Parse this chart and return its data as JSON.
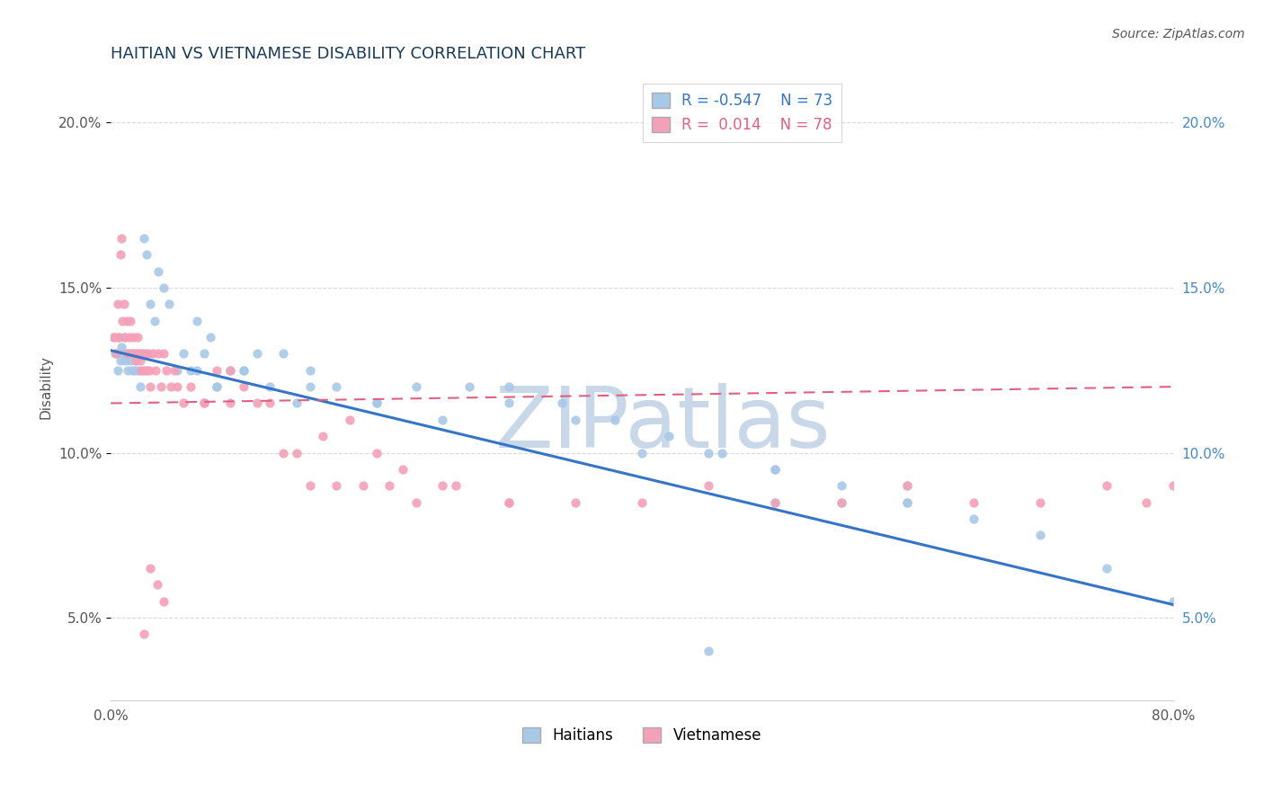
{
  "title": "HAITIAN VS VIETNAMESE DISABILITY CORRELATION CHART",
  "source": "Source: ZipAtlas.com",
  "ylabel": "Disability",
  "xlim": [
    0.0,
    0.8
  ],
  "ylim": [
    0.025,
    0.215
  ],
  "xtick_positions": [
    0.0,
    0.1,
    0.2,
    0.3,
    0.4,
    0.5,
    0.6,
    0.7,
    0.8
  ],
  "xticklabels": [
    "0.0%",
    "",
    "",
    "",
    "",
    "",
    "",
    "",
    "80.0%"
  ],
  "ytick_positions": [
    0.05,
    0.1,
    0.15,
    0.2
  ],
  "yticklabels": [
    "5.0%",
    "10.0%",
    "15.0%",
    "20.0%"
  ],
  "R_haitian": -0.547,
  "N_haitian": 73,
  "R_vietnamese": 0.014,
  "N_vietnamese": 78,
  "haitian_color": "#a8c8e8",
  "vietnamese_color": "#f4a0b8",
  "haitian_line_color": "#3575c8",
  "vietnamese_line_color": "#e06080",
  "watermark": "ZIPatlas",
  "watermark_color": "#c8d8e8",
  "title_color": "#1a3a5c",
  "grid_color": "#d8d8d8",
  "haitian_x": [
    0.003,
    0.005,
    0.006,
    0.007,
    0.008,
    0.009,
    0.01,
    0.011,
    0.012,
    0.013,
    0.014,
    0.015,
    0.016,
    0.017,
    0.018,
    0.019,
    0.02,
    0.021,
    0.022,
    0.023,
    0.025,
    0.027,
    0.03,
    0.033,
    0.036,
    0.04,
    0.044,
    0.05,
    0.055,
    0.06,
    0.065,
    0.07,
    0.075,
    0.08,
    0.09,
    0.1,
    0.11,
    0.12,
    0.13,
    0.14,
    0.15,
    0.17,
    0.2,
    0.23,
    0.27,
    0.3,
    0.34,
    0.38,
    0.42,
    0.46,
    0.5,
    0.55,
    0.6,
    0.065,
    0.08,
    0.1,
    0.15,
    0.2,
    0.25,
    0.3,
    0.35,
    0.4,
    0.45,
    0.5,
    0.55,
    0.6,
    0.65,
    0.7,
    0.75,
    0.8,
    0.6,
    0.5,
    0.45
  ],
  "haitian_y": [
    0.13,
    0.125,
    0.135,
    0.128,
    0.132,
    0.13,
    0.135,
    0.128,
    0.13,
    0.125,
    0.13,
    0.128,
    0.125,
    0.13,
    0.125,
    0.128,
    0.13,
    0.125,
    0.12,
    0.13,
    0.165,
    0.16,
    0.145,
    0.14,
    0.155,
    0.15,
    0.145,
    0.125,
    0.13,
    0.125,
    0.14,
    0.13,
    0.135,
    0.12,
    0.125,
    0.125,
    0.13,
    0.12,
    0.13,
    0.115,
    0.125,
    0.12,
    0.115,
    0.12,
    0.12,
    0.12,
    0.115,
    0.11,
    0.105,
    0.1,
    0.095,
    0.085,
    0.085,
    0.125,
    0.12,
    0.125,
    0.12,
    0.115,
    0.11,
    0.115,
    0.11,
    0.1,
    0.1,
    0.095,
    0.09,
    0.09,
    0.08,
    0.075,
    0.065,
    0.055,
    0.085,
    0.085,
    0.04
  ],
  "vietnamese_x": [
    0.002,
    0.003,
    0.004,
    0.005,
    0.006,
    0.007,
    0.008,
    0.009,
    0.01,
    0.011,
    0.012,
    0.013,
    0.014,
    0.015,
    0.016,
    0.017,
    0.018,
    0.019,
    0.02,
    0.021,
    0.022,
    0.023,
    0.024,
    0.025,
    0.026,
    0.027,
    0.028,
    0.029,
    0.03,
    0.032,
    0.034,
    0.036,
    0.038,
    0.04,
    0.042,
    0.045,
    0.048,
    0.05,
    0.055,
    0.06,
    0.07,
    0.08,
    0.09,
    0.1,
    0.12,
    0.14,
    0.16,
    0.18,
    0.2,
    0.22,
    0.25,
    0.3,
    0.07,
    0.09,
    0.11,
    0.13,
    0.15,
    0.17,
    0.19,
    0.21,
    0.23,
    0.26,
    0.3,
    0.35,
    0.4,
    0.45,
    0.5,
    0.55,
    0.6,
    0.65,
    0.7,
    0.75,
    0.78,
    0.8,
    0.025,
    0.03,
    0.035,
    0.04
  ],
  "vietnamese_y": [
    0.135,
    0.135,
    0.13,
    0.145,
    0.135,
    0.16,
    0.165,
    0.14,
    0.145,
    0.135,
    0.14,
    0.13,
    0.135,
    0.14,
    0.13,
    0.135,
    0.13,
    0.128,
    0.135,
    0.13,
    0.128,
    0.125,
    0.13,
    0.125,
    0.13,
    0.125,
    0.13,
    0.125,
    0.12,
    0.13,
    0.125,
    0.13,
    0.12,
    0.13,
    0.125,
    0.12,
    0.125,
    0.12,
    0.115,
    0.12,
    0.115,
    0.125,
    0.115,
    0.12,
    0.115,
    0.1,
    0.105,
    0.11,
    0.1,
    0.095,
    0.09,
    0.085,
    0.115,
    0.125,
    0.115,
    0.1,
    0.09,
    0.09,
    0.09,
    0.09,
    0.085,
    0.09,
    0.085,
    0.085,
    0.085,
    0.09,
    0.085,
    0.085,
    0.09,
    0.085,
    0.085,
    0.09,
    0.085,
    0.09,
    0.045,
    0.065,
    0.06,
    0.055
  ]
}
